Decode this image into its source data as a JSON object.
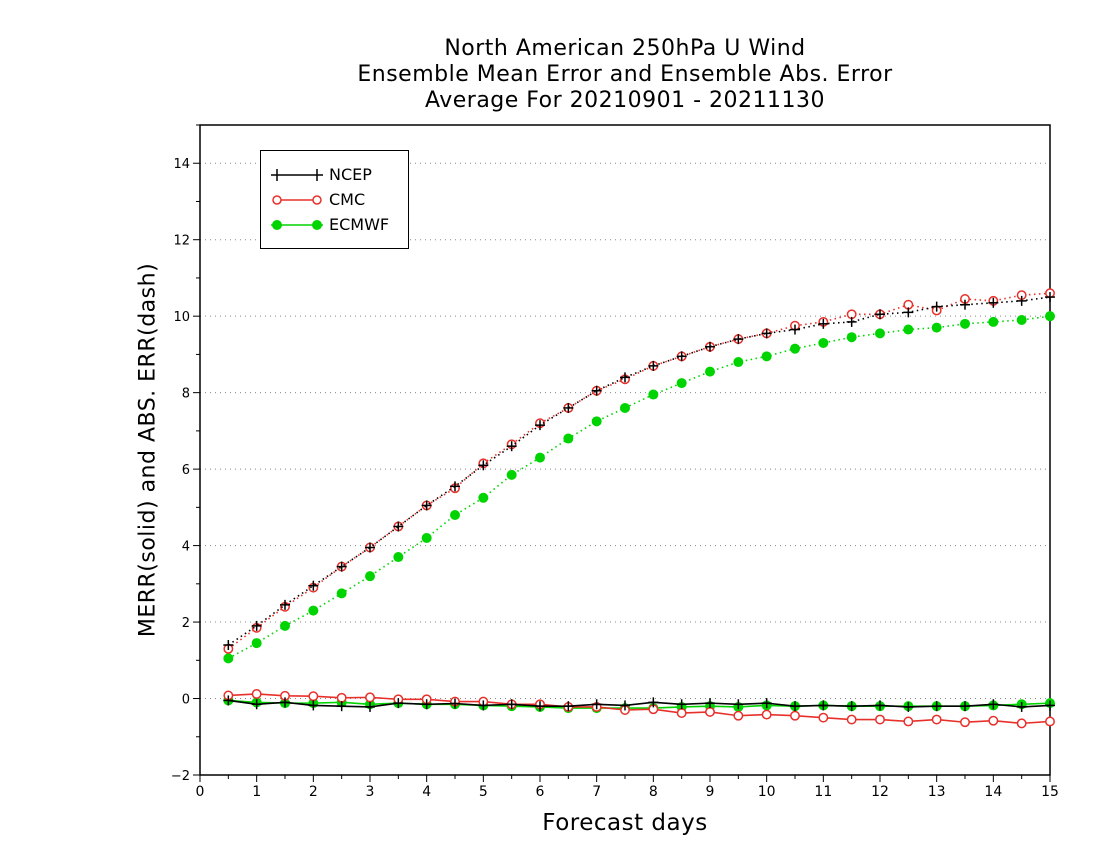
{
  "title": {
    "line1": "North American 250hPa U Wind",
    "line2": "Ensemble Mean Error and Ensemble Abs. Error",
    "line3": "Average For 20210901 - 20211130"
  },
  "colors": {
    "NCEP": "#000000",
    "CMC": "#e8302a",
    "ECMWF": "#00d400"
  },
  "chart_data": {
    "type": "line",
    "title": "North American 250hPa U Wind / Ensemble Mean Error and Ensemble Abs. Error / Average For 20210901 - 20211130",
    "xlabel": "Forecast days",
    "ylabel": "MERR(solid) and ABS. ERR(dash)",
    "xlim": [
      0,
      15
    ],
    "ylim": [
      -2,
      15
    ],
    "xticks": [
      0,
      1,
      2,
      3,
      4,
      5,
      6,
      7,
      8,
      9,
      10,
      11,
      12,
      13,
      14,
      15
    ],
    "yticks": [
      -2,
      0,
      2,
      4,
      6,
      8,
      10,
      12,
      14
    ],
    "grid": "horizontal dotted",
    "legend_position": "top-left",
    "x": [
      0.5,
      1,
      1.5,
      2,
      2.5,
      3,
      3.5,
      4,
      4.5,
      5,
      5.5,
      6,
      6.5,
      7,
      7.5,
      8,
      8.5,
      9,
      9.5,
      10,
      10.5,
      11,
      11.5,
      12,
      12.5,
      13,
      13.5,
      14,
      14.5,
      15
    ],
    "series": [
      {
        "name": "NCEP",
        "style": "solid",
        "marker": "plus",
        "values": [
          -0.05,
          -0.15,
          -0.1,
          -0.18,
          -0.2,
          -0.22,
          -0.12,
          -0.15,
          -0.13,
          -0.18,
          -0.15,
          -0.2,
          -0.2,
          -0.15,
          -0.18,
          -0.1,
          -0.15,
          -0.12,
          -0.15,
          -0.12,
          -0.2,
          -0.18,
          -0.2,
          -0.18,
          -0.22,
          -0.2,
          -0.2,
          -0.15,
          -0.22,
          -0.18
        ]
      },
      {
        "name": "NCEP",
        "style": "dotted",
        "marker": "plus",
        "values": [
          1.4,
          1.9,
          2.45,
          2.95,
          3.45,
          3.95,
          4.5,
          5.05,
          5.55,
          6.1,
          6.6,
          7.15,
          7.6,
          8.05,
          8.4,
          8.7,
          8.95,
          9.2,
          9.4,
          9.55,
          9.65,
          9.8,
          9.85,
          10.05,
          10.1,
          10.25,
          10.3,
          10.35,
          10.4,
          10.5
        ]
      },
      {
        "name": "CMC",
        "style": "solid",
        "marker": "open-circle",
        "values": [
          0.08,
          0.12,
          0.07,
          0.06,
          0.02,
          0.03,
          -0.02,
          -0.02,
          -0.08,
          -0.08,
          -0.15,
          -0.15,
          -0.22,
          -0.22,
          -0.3,
          -0.28,
          -0.38,
          -0.35,
          -0.45,
          -0.42,
          -0.45,
          -0.5,
          -0.55,
          -0.55,
          -0.6,
          -0.55,
          -0.62,
          -0.58,
          -0.65,
          -0.6
        ]
      },
      {
        "name": "CMC",
        "style": "dotted",
        "marker": "open-circle",
        "values": [
          1.3,
          1.85,
          2.4,
          2.9,
          3.45,
          3.95,
          4.5,
          5.05,
          5.5,
          6.15,
          6.65,
          7.2,
          7.6,
          8.05,
          8.35,
          8.7,
          8.95,
          9.2,
          9.4,
          9.55,
          9.75,
          9.85,
          10.05,
          10.05,
          10.3,
          10.15,
          10.45,
          10.4,
          10.55,
          10.6
        ]
      },
      {
        "name": "ECMWF",
        "style": "solid",
        "marker": "filled-circle",
        "values": [
          -0.05,
          -0.1,
          -0.12,
          -0.12,
          -0.1,
          -0.15,
          -0.12,
          -0.15,
          -0.15,
          -0.18,
          -0.2,
          -0.22,
          -0.25,
          -0.25,
          -0.25,
          -0.25,
          -0.22,
          -0.2,
          -0.22,
          -0.18,
          -0.2,
          -0.18,
          -0.2,
          -0.2,
          -0.2,
          -0.2,
          -0.2,
          -0.18,
          -0.15,
          -0.12
        ]
      },
      {
        "name": "ECMWF",
        "style": "dotted",
        "marker": "filled-circle",
        "values": [
          1.05,
          1.45,
          1.9,
          2.3,
          2.75,
          3.2,
          3.7,
          4.2,
          4.8,
          5.25,
          5.85,
          6.3,
          6.8,
          7.25,
          7.6,
          7.95,
          8.25,
          8.55,
          8.8,
          8.95,
          9.15,
          9.3,
          9.45,
          9.55,
          9.65,
          9.7,
          9.8,
          9.85,
          9.9,
          10.0
        ]
      }
    ]
  },
  "legend": [
    {
      "label": "NCEP",
      "marker": "plus",
      "color": "#000000"
    },
    {
      "label": "CMC",
      "marker": "open-circle",
      "color": "#e8302a"
    },
    {
      "label": "ECMWF",
      "marker": "filled-circle",
      "color": "#00d400"
    }
  ]
}
